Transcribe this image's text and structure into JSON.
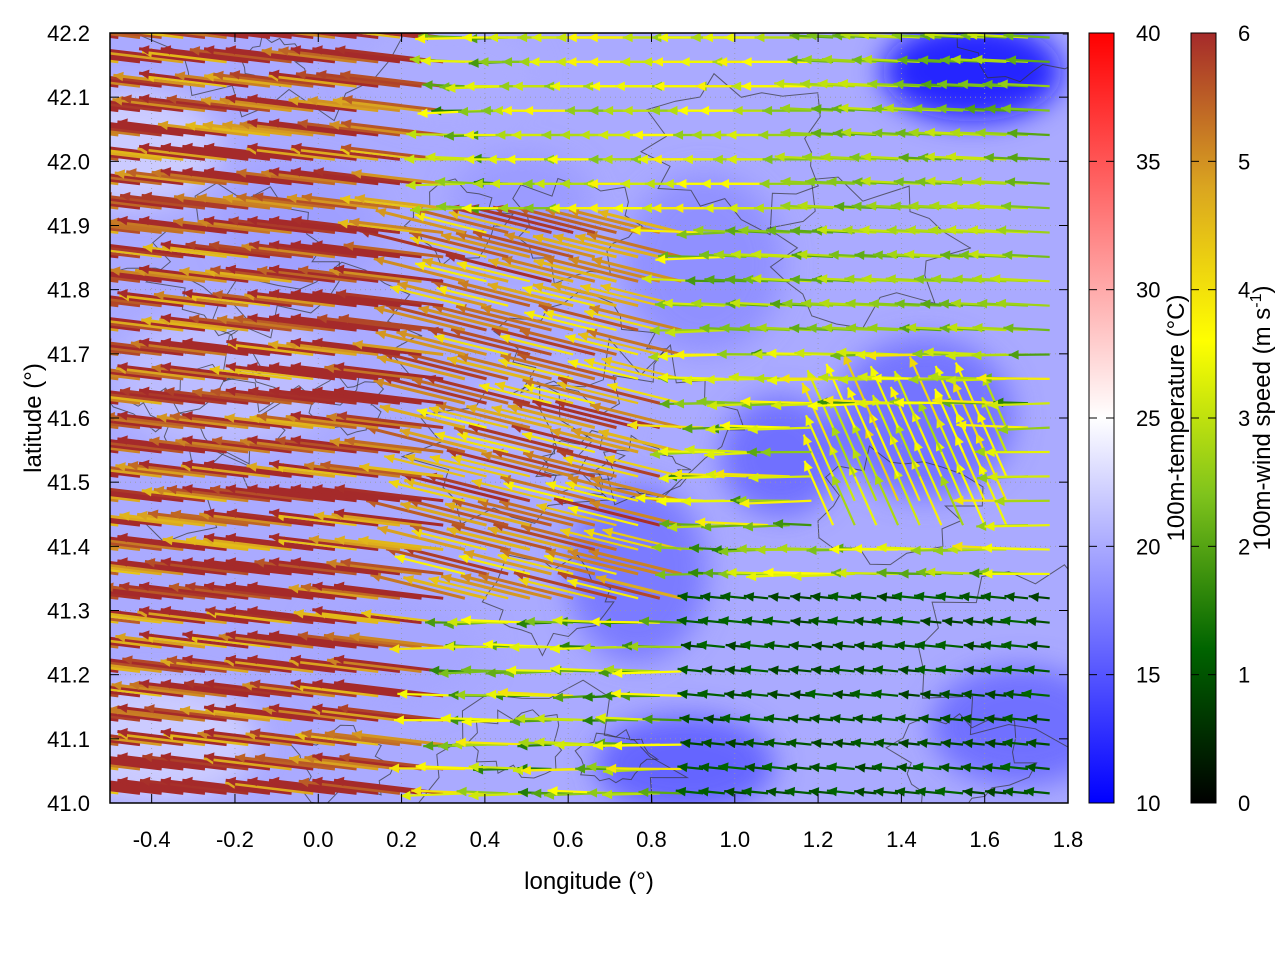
{
  "chart_data": {
    "type": "vector-field",
    "xlabel": "longitude (°)",
    "ylabel": "latitude (°)",
    "xlim": [
      -0.5,
      1.8
    ],
    "ylim": [
      41.0,
      42.2
    ],
    "xticks": [
      "-0.4",
      "-0.2",
      "0.0",
      "0.2",
      "0.4",
      "0.6",
      "0.8",
      "1.0",
      "1.2",
      "1.4",
      "1.6",
      "1.8"
    ],
    "xtick_values": [
      -0.4,
      -0.2,
      0.0,
      0.2,
      0.4,
      0.6,
      0.8,
      1.0,
      1.2,
      1.4,
      1.6,
      1.8
    ],
    "yticks": [
      "41.0",
      "41.1",
      "41.2",
      "41.3",
      "41.4",
      "41.5",
      "41.6",
      "41.7",
      "41.8",
      "41.9",
      "42.0",
      "42.1",
      "42.2"
    ],
    "ytick_values": [
      41.0,
      41.1,
      41.2,
      41.3,
      41.4,
      41.5,
      41.6,
      41.7,
      41.8,
      41.9,
      42.0,
      42.1,
      42.2
    ],
    "grid": true,
    "background_field": {
      "label": "100m-temperature (°C)",
      "range": [
        10,
        40
      ],
      "ticks": [
        "10",
        "15",
        "20",
        "25",
        "30",
        "35",
        "40"
      ],
      "tick_values": [
        10,
        15,
        20,
        25,
        30,
        35,
        40
      ],
      "colors": [
        "#0000ff",
        "#ffffff",
        "#ff0000"
      ]
    },
    "vector_field": {
      "label": "100m-wind speed (m s-1)",
      "label_main": "100m-wind speed (m s",
      "label_exp": "-1",
      "label_close": ")",
      "range": [
        0,
        6
      ],
      "ticks": [
        "0",
        "1",
        "2",
        "3",
        "4",
        "5",
        "6"
      ],
      "tick_values": [
        0,
        1,
        2,
        3,
        4,
        5,
        6
      ],
      "colors": [
        "#000000",
        "#006400",
        "#7fc31c",
        "#ffff00",
        "#daa520",
        "#a52a2a"
      ],
      "predominant_direction": "from east (westward)",
      "regions": [
        {
          "lon": [
            -0.5,
            0.3
          ],
          "lat": [
            41.0,
            42.2
          ],
          "speed": 5.8,
          "u": -1.0,
          "v": 0.12
        },
        {
          "lon": [
            0.3,
            0.9
          ],
          "lat": [
            41.3,
            41.9
          ],
          "speed": 5.0,
          "u": -1.0,
          "v": 0.25
        },
        {
          "lon": [
            0.5,
            1.2
          ],
          "lat": [
            41.9,
            42.2
          ],
          "speed": 3.2,
          "u": -1.0,
          "v": 0.0
        },
        {
          "lon": [
            1.0,
            1.8
          ],
          "lat": [
            41.7,
            42.2
          ],
          "speed": 2.6,
          "u": -1.0,
          "v": 0.05
        },
        {
          "lon": [
            1.2,
            1.7
          ],
          "lat": [
            41.4,
            41.6
          ],
          "speed": 3.6,
          "u": -0.4,
          "v": 0.9
        },
        {
          "lon": [
            0.9,
            1.8
          ],
          "lat": [
            41.0,
            41.35
          ],
          "speed": 1.0,
          "u": -1.0,
          "v": 0.1
        }
      ]
    }
  }
}
